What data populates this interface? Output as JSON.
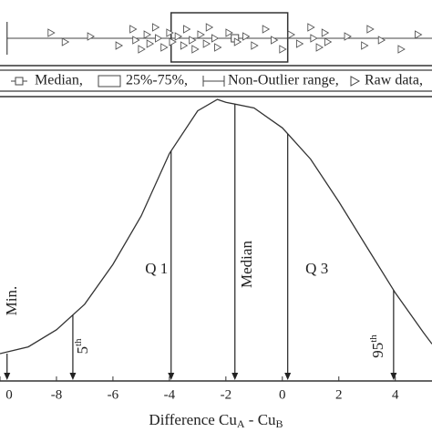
{
  "chart_data": {
    "type": "line",
    "x_label": [
      "Difference Cu",
      "A",
      " - Cu",
      "B"
    ],
    "x": [
      -10,
      -9,
      -8,
      -7,
      -6,
      -5,
      -4,
      -3,
      -2.3,
      -2,
      -1,
      0,
      1,
      2,
      3,
      4,
      5,
      5.3
    ],
    "values": [
      9.6,
      12,
      18,
      27,
      41,
      58,
      80,
      95,
      99,
      98,
      96,
      89,
      78,
      63,
      47,
      31,
      17,
      13
    ],
    "color": "#333333",
    "xlim": [
      -10,
      5.3
    ],
    "ylim": [
      0,
      100
    ],
    "xticks": [
      {
        "value": -10,
        "label": "0"
      },
      -8,
      -6,
      -4,
      -2,
      0,
      2,
      4
    ],
    "markers": [
      {
        "label": "Min.",
        "x": -9.75,
        "orientation": "vertical"
      },
      {
        "label": "5",
        "sup": "th",
        "x": -7.42,
        "orientation": "vertical"
      },
      {
        "label": "Q 1",
        "x": -3.94,
        "orientation": "horizontal"
      },
      {
        "label": "Median",
        "x": -1.68,
        "orientation": "vertical"
      },
      {
        "label": "Q 3",
        "x": 0.19,
        "orientation": "horizontal"
      },
      {
        "label": "95",
        "sup": "th",
        "x": 3.94,
        "orientation": "vertical"
      }
    ],
    "box": {
      "whisker_low": -9.75,
      "q1": -3.94,
      "median": -1.68,
      "q3": 0.19,
      "whisker_high": 5.5
    },
    "raw_data": [
      -8.2,
      -7.7,
      -6.8,
      -5.8,
      -5.3,
      -5.2,
      -5.0,
      -4.8,
      -4.7,
      -4.5,
      -4.4,
      -4.2,
      -4.0,
      -3.9,
      -3.7,
      -3.5,
      -3.4,
      -3.2,
      -3.1,
      -2.9,
      -2.7,
      -2.6,
      -2.4,
      -2.3,
      -1.9,
      -1.6,
      -1.3,
      -1.0,
      -0.6,
      -0.3,
      0.0,
      0.3,
      0.6,
      1.0,
      1.1,
      1.3,
      1.5,
      1.6,
      2.3,
      2.9,
      3.1,
      3.5,
      4.2,
      4.8
    ],
    "legend": [
      "Median,",
      "25%-75%,",
      "Non-Outlier range,",
      "Raw data,"
    ]
  }
}
